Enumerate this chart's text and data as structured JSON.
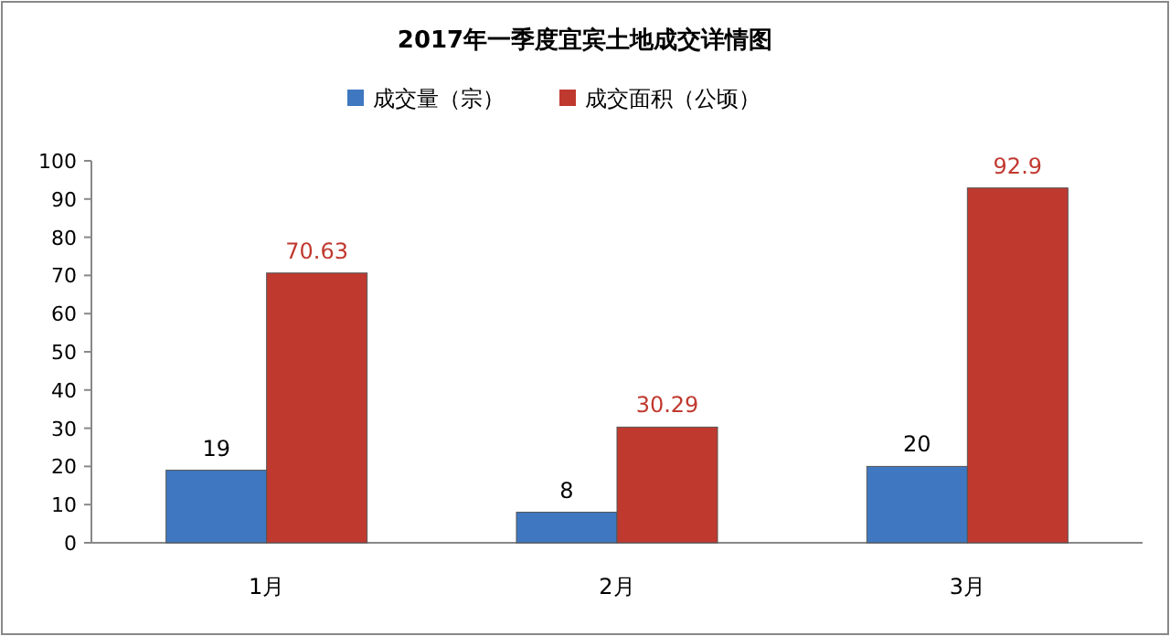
{
  "chart_data": {
    "type": "bar",
    "title": "2017年一季度宜宾土地成交详情图",
    "categories": [
      "1月",
      "2月",
      "3月"
    ],
    "series": [
      {
        "name": "成交量（宗）",
        "color": "#3f78c0",
        "values": [
          19,
          8,
          20
        ]
      },
      {
        "name": "成交面积（公顷）",
        "color": "#c0392f",
        "values": [
          70.63,
          30.29,
          92.9
        ]
      }
    ],
    "ylim": [
      0,
      100
    ],
    "yticks": [
      0,
      10,
      20,
      30,
      40,
      50,
      60,
      70,
      80,
      90,
      100
    ],
    "data_labels": true,
    "legend": "top"
  }
}
